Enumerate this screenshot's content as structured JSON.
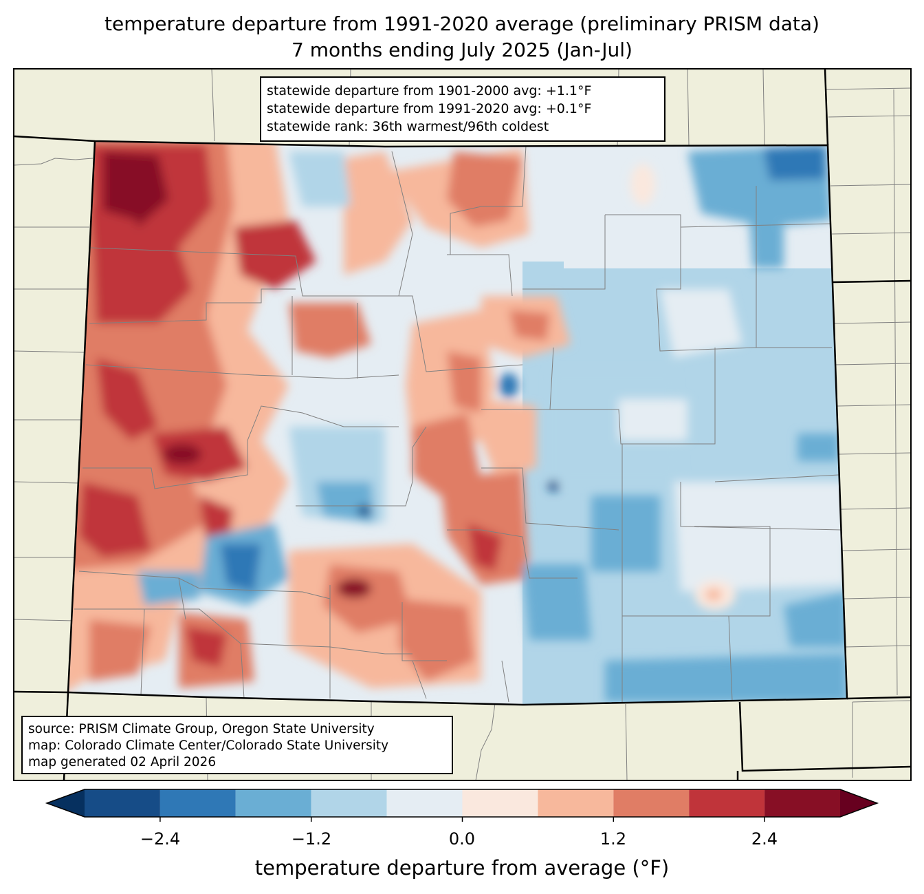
{
  "title": {
    "line1": "temperature departure from 1991-2020 average (preliminary PRISM data)",
    "line2": "7 months ending July 2025 (Jan-Jul)"
  },
  "stats": {
    "line1": "statewide departure from 1901-2000 avg: +1.1°F",
    "line2": "statewide departure from 1991-2020 avg: +0.1°F",
    "line3": "statewide rank: 36th warmest/96th coldest"
  },
  "source": {
    "line1": "source: PRISM Climate Group, Oregon State University",
    "line2": "map: Colorado Climate Center/Colorado State University",
    "line3": "map generated 02 April 2026"
  },
  "colorbar": {
    "title": "temperature departure from average (°F)",
    "tick_labels": [
      "−2.4",
      "−1.2",
      "0.0",
      "1.2",
      "2.4"
    ],
    "levels": [
      -3.0,
      -2.4,
      -1.8,
      -1.2,
      -0.6,
      0.0,
      0.6,
      1.2,
      1.8,
      2.4,
      3.0
    ],
    "colors": [
      "#164c87",
      "#2f78b6",
      "#6aaed4",
      "#b1d5e8",
      "#e5edf3",
      "#fae8de",
      "#f7b89c",
      "#e07d65",
      "#c0343a",
      "#870f25"
    ],
    "extend_low_color": "#06305f",
    "extend_high_color": "#67001f"
  },
  "map_colors": {
    "land": "#efefdc",
    "state_border": "#000000",
    "county_border": "#808080"
  }
}
